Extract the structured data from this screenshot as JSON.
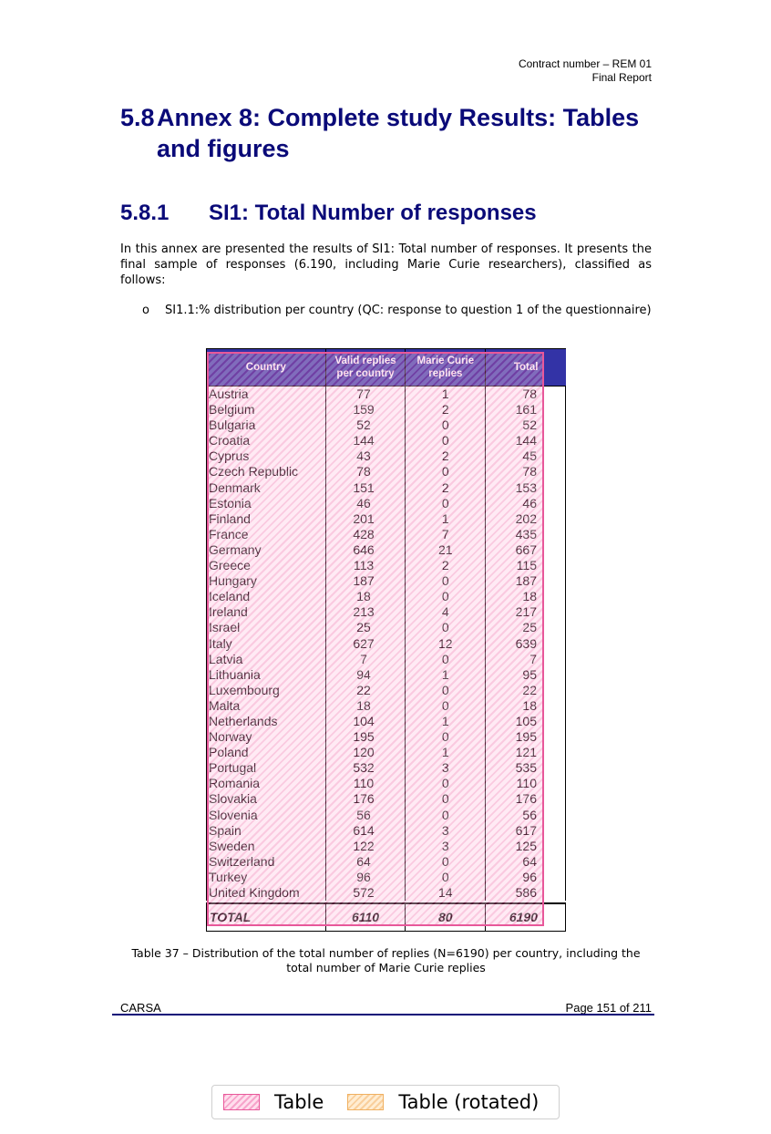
{
  "header": {
    "line1": "Contract number – REM 01",
    "line2": "Final Report"
  },
  "heading1": {
    "number": "5.8",
    "line1": "Annex 8: Complete study Results: Tables",
    "line2": "and figures"
  },
  "heading2": {
    "number": "5.8.1",
    "title": "SI1: Total Number of responses"
  },
  "intro": "In this annex are presented the results of SI1: Total number of responses. It presents the final sample of responses (6.190, including Marie Curie researchers), classified as follows:",
  "bullet": {
    "marker": "o",
    "text": "SI1.1:% distribution per country (QC: response to question 1 of the questionnaire)"
  },
  "table": {
    "headers": [
      "Country",
      "Valid replies per country",
      "Marie Curie replies",
      "Total"
    ],
    "rows": [
      [
        "Austria",
        "77",
        "1",
        "78"
      ],
      [
        "Belgium",
        "159",
        "2",
        "161"
      ],
      [
        "Bulgaria",
        "52",
        "0",
        "52"
      ],
      [
        "Croatia",
        "144",
        "0",
        "144"
      ],
      [
        "Cyprus",
        "43",
        "2",
        "45"
      ],
      [
        "Czech Republic",
        "78",
        "0",
        "78"
      ],
      [
        "Denmark",
        "151",
        "2",
        "153"
      ],
      [
        "Estonia",
        "46",
        "0",
        "46"
      ],
      [
        "Finland",
        "201",
        "1",
        "202"
      ],
      [
        "France",
        "428",
        "7",
        "435"
      ],
      [
        "Germany",
        "646",
        "21",
        "667"
      ],
      [
        "Greece",
        "113",
        "2",
        "115"
      ],
      [
        "Hungary",
        "187",
        "0",
        "187"
      ],
      [
        "Iceland",
        "18",
        "0",
        "18"
      ],
      [
        "Ireland",
        "213",
        "4",
        "217"
      ],
      [
        "Israel",
        "25",
        "0",
        "25"
      ],
      [
        "Italy",
        "627",
        "12",
        "639"
      ],
      [
        "Latvia",
        "7",
        "0",
        "7"
      ],
      [
        "Lithuania",
        "94",
        "1",
        "95"
      ],
      [
        "Luxembourg",
        "22",
        "0",
        "22"
      ],
      [
        "Malta",
        "18",
        "0",
        "18"
      ],
      [
        "Netherlands",
        "104",
        "1",
        "105"
      ],
      [
        "Norway",
        "195",
        "0",
        "195"
      ],
      [
        "Poland",
        "120",
        "1",
        "121"
      ],
      [
        "Portugal",
        "532",
        "3",
        "535"
      ],
      [
        "Romania",
        "110",
        "0",
        "110"
      ],
      [
        "Slovakia",
        "176",
        "0",
        "176"
      ],
      [
        "Slovenia",
        "56",
        "0",
        "56"
      ],
      [
        "Spain",
        "614",
        "3",
        "617"
      ],
      [
        "Sweden",
        "122",
        "3",
        "125"
      ],
      [
        "Switzerland",
        "64",
        "0",
        "64"
      ],
      [
        "Turkey",
        "96",
        "0",
        "96"
      ],
      [
        "United Kingdom",
        "572",
        "14",
        "586"
      ]
    ],
    "total": [
      "TOTAL",
      "6110",
      "80",
      "6190"
    ]
  },
  "caption": "Table 37 – Distribution of the total number of replies (N=6190) per country, including the total number of Marie Curie replies",
  "footer": {
    "left": "CARSA",
    "right": "Page 151 of 211"
  },
  "legend": {
    "items": [
      "Table",
      "Table (rotated)"
    ]
  }
}
